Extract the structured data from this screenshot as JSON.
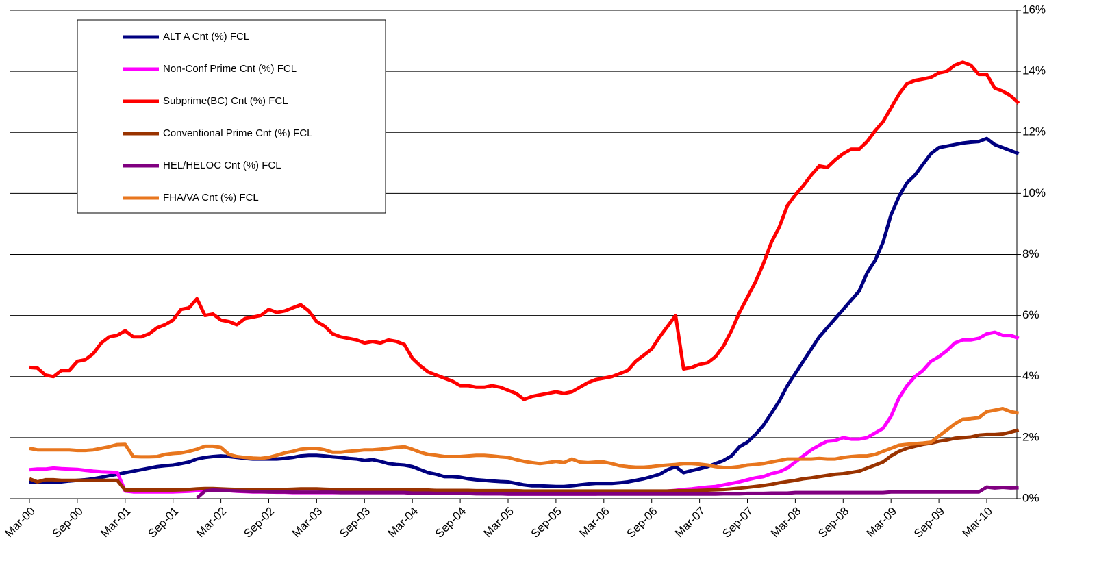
{
  "chart_data": {
    "type": "line",
    "categories": [
      "Mar-00",
      null,
      null,
      null,
      null,
      null,
      "Sep-00",
      null,
      null,
      null,
      null,
      null,
      "Mar-01",
      null,
      null,
      null,
      null,
      null,
      "Sep-01",
      null,
      null,
      null,
      null,
      null,
      "Mar-02",
      null,
      null,
      null,
      null,
      null,
      "Sep-02",
      null,
      null,
      null,
      null,
      null,
      "Mar-03",
      null,
      null,
      null,
      null,
      null,
      "Sep-03",
      null,
      null,
      null,
      null,
      null,
      "Mar-04",
      null,
      null,
      null,
      null,
      null,
      "Sep-04",
      null,
      null,
      null,
      null,
      null,
      "Mar-05",
      null,
      null,
      null,
      null,
      null,
      "Sep-05",
      null,
      null,
      null,
      null,
      null,
      "Mar-06",
      null,
      null,
      null,
      null,
      null,
      "Sep-06",
      null,
      null,
      null,
      null,
      null,
      "Mar-07",
      null,
      null,
      null,
      null,
      null,
      "Sep-07",
      null,
      null,
      null,
      null,
      null,
      "Mar-08",
      null,
      null,
      null,
      null,
      null,
      "Sep-08",
      null,
      null,
      null,
      null,
      null,
      "Mar-09",
      null,
      null,
      null,
      null,
      null,
      "Sep-09",
      null,
      null,
      null,
      null,
      null,
      "Mar-10",
      null,
      null,
      null,
      null
    ],
    "series": [
      {
        "name": "ALT A Cnt (%) FCL",
        "color": "#000080",
        "values": [
          0.55,
          0.55,
          0.55,
          0.55,
          0.55,
          0.58,
          0.6,
          0.62,
          0.65,
          0.7,
          0.75,
          0.8,
          0.85,
          0.9,
          0.95,
          1.0,
          1.05,
          1.08,
          1.1,
          1.15,
          1.2,
          1.3,
          1.35,
          1.38,
          1.4,
          1.38,
          1.35,
          1.32,
          1.3,
          1.3,
          1.3,
          1.3,
          1.32,
          1.35,
          1.4,
          1.42,
          1.42,
          1.4,
          1.37,
          1.35,
          1.32,
          1.3,
          1.25,
          1.28,
          1.22,
          1.15,
          1.12,
          1.1,
          1.05,
          0.95,
          0.85,
          0.8,
          0.72,
          0.72,
          0.7,
          0.65,
          0.62,
          0.6,
          0.58,
          0.56,
          0.55,
          0.5,
          0.45,
          0.42,
          0.42,
          0.41,
          0.4,
          0.4,
          0.42,
          0.45,
          0.48,
          0.5,
          0.5,
          0.5,
          0.52,
          0.55,
          0.6,
          0.65,
          0.72,
          0.8,
          0.95,
          1.05,
          0.85,
          0.92,
          0.98,
          1.05,
          1.15,
          1.25,
          1.4,
          1.7,
          1.85,
          2.1,
          2.4,
          2.8,
          3.2,
          3.7,
          4.1,
          4.5,
          4.9,
          5.3,
          5.6,
          5.9,
          6.2,
          6.5,
          6.8,
          7.4,
          7.8,
          8.4,
          9.3,
          9.9,
          10.35,
          10.6,
          10.95,
          11.3,
          11.5,
          11.55,
          11.6,
          11.65,
          11.68,
          11.7,
          11.8,
          11.6,
          11.5,
          11.4,
          11.3
        ]
      },
      {
        "name": "Non-Conf Prime Cnt (%) FCL",
        "color": "#ff00ff",
        "values": [
          0.95,
          0.97,
          0.97,
          1.0,
          0.98,
          0.97,
          0.96,
          0.93,
          0.9,
          0.88,
          0.87,
          0.86,
          0.25,
          0.22,
          0.22,
          0.22,
          0.22,
          0.22,
          0.22,
          0.23,
          0.24,
          0.26,
          0.28,
          0.3,
          0.28,
          0.26,
          0.24,
          0.23,
          0.22,
          0.22,
          0.22,
          0.21,
          0.21,
          0.2,
          0.2,
          0.2,
          0.2,
          0.2,
          0.2,
          0.2,
          0.2,
          0.2,
          0.2,
          0.2,
          0.2,
          0.2,
          0.2,
          0.2,
          0.18,
          0.18,
          0.18,
          0.18,
          0.18,
          0.18,
          0.17,
          0.17,
          0.17,
          0.16,
          0.16,
          0.16,
          0.15,
          0.15,
          0.15,
          0.15,
          0.15,
          0.15,
          0.15,
          0.15,
          0.15,
          0.15,
          0.15,
          0.15,
          0.18,
          0.18,
          0.19,
          0.2,
          0.2,
          0.21,
          0.22,
          0.23,
          0.25,
          0.27,
          0.3,
          0.32,
          0.35,
          0.38,
          0.4,
          0.45,
          0.5,
          0.55,
          0.62,
          0.68,
          0.72,
          0.82,
          0.88,
          1.0,
          1.2,
          1.4,
          1.6,
          1.75,
          1.88,
          1.9,
          2.0,
          1.95,
          1.95,
          2.0,
          2.15,
          2.3,
          2.7,
          3.3,
          3.7,
          4.0,
          4.2,
          4.5,
          4.65,
          4.85,
          5.1,
          5.2,
          5.2,
          5.25,
          5.4,
          5.45,
          5.35,
          5.35,
          5.25
        ]
      },
      {
        "name": "Subprime(BC) Cnt (%) FCL",
        "color": "#ff0000",
        "values": [
          4.3,
          4.28,
          4.05,
          4.0,
          4.2,
          4.2,
          4.5,
          4.55,
          4.75,
          5.1,
          5.3,
          5.35,
          5.5,
          5.3,
          5.3,
          5.4,
          5.6,
          5.7,
          5.85,
          6.2,
          6.25,
          6.55,
          6.0,
          6.05,
          5.85,
          5.8,
          5.7,
          5.9,
          5.95,
          6.0,
          6.2,
          6.1,
          6.15,
          6.25,
          6.35,
          6.15,
          5.8,
          5.65,
          5.4,
          5.3,
          5.25,
          5.2,
          5.1,
          5.15,
          5.1,
          5.2,
          5.15,
          5.05,
          4.6,
          4.35,
          4.15,
          4.05,
          3.95,
          3.85,
          3.7,
          3.7,
          3.65,
          3.65,
          3.7,
          3.65,
          3.55,
          3.45,
          3.25,
          3.35,
          3.4,
          3.45,
          3.5,
          3.45,
          3.5,
          3.65,
          3.8,
          3.9,
          3.95,
          4.0,
          4.1,
          4.2,
          4.5,
          4.7,
          4.9,
          5.3,
          5.65,
          6.0,
          4.25,
          4.3,
          4.4,
          4.45,
          4.65,
          5.0,
          5.5,
          6.1,
          6.6,
          7.1,
          7.7,
          8.4,
          8.9,
          9.6,
          9.95,
          10.25,
          10.6,
          10.9,
          10.85,
          11.1,
          11.3,
          11.45,
          11.45,
          11.7,
          12.05,
          12.35,
          12.8,
          13.25,
          13.6,
          13.7,
          13.75,
          13.8,
          13.95,
          14.0,
          14.2,
          14.3,
          14.2,
          13.9,
          13.9,
          13.45,
          13.35,
          13.2,
          12.95
        ]
      },
      {
        "name": "Conventional Prime Cnt (%) FCL",
        "color": "#993300",
        "values": [
          0.65,
          0.55,
          0.62,
          0.62,
          0.6,
          0.6,
          0.6,
          0.6,
          0.6,
          0.6,
          0.6,
          0.6,
          0.28,
          0.28,
          0.28,
          0.28,
          0.28,
          0.28,
          0.28,
          0.29,
          0.3,
          0.32,
          0.33,
          0.33,
          0.32,
          0.31,
          0.3,
          0.3,
          0.3,
          0.3,
          0.3,
          0.3,
          0.3,
          0.31,
          0.32,
          0.32,
          0.32,
          0.31,
          0.3,
          0.3,
          0.3,
          0.3,
          0.3,
          0.3,
          0.3,
          0.3,
          0.3,
          0.3,
          0.28,
          0.28,
          0.28,
          0.27,
          0.27,
          0.27,
          0.27,
          0.27,
          0.26,
          0.26,
          0.26,
          0.26,
          0.26,
          0.26,
          0.25,
          0.25,
          0.25,
          0.25,
          0.25,
          0.25,
          0.25,
          0.25,
          0.25,
          0.25,
          0.25,
          0.25,
          0.25,
          0.25,
          0.25,
          0.25,
          0.25,
          0.25,
          0.25,
          0.26,
          0.26,
          0.26,
          0.27,
          0.28,
          0.29,
          0.3,
          0.32,
          0.34,
          0.37,
          0.4,
          0.43,
          0.47,
          0.52,
          0.56,
          0.6,
          0.65,
          0.68,
          0.72,
          0.76,
          0.8,
          0.82,
          0.86,
          0.9,
          1.0,
          1.1,
          1.2,
          1.4,
          1.55,
          1.65,
          1.72,
          1.78,
          1.82,
          1.88,
          1.92,
          1.98,
          2.0,
          2.02,
          2.08,
          2.1,
          2.1,
          2.12,
          2.18,
          2.25
        ]
      },
      {
        "name": "HEL/HELOC Cnt (%) FCL",
        "color": "#800080",
        "values": [
          null,
          null,
          null,
          null,
          null,
          null,
          null,
          null,
          null,
          null,
          null,
          null,
          null,
          null,
          null,
          null,
          null,
          null,
          null,
          null,
          null,
          0.02,
          0.25,
          0.28,
          0.27,
          0.26,
          0.25,
          0.24,
          0.23,
          0.23,
          0.22,
          0.22,
          0.22,
          0.21,
          0.21,
          0.21,
          0.21,
          0.21,
          0.21,
          0.2,
          0.2,
          0.2,
          0.2,
          0.2,
          0.2,
          0.2,
          0.2,
          0.2,
          0.18,
          0.18,
          0.18,
          0.17,
          0.17,
          0.17,
          0.17,
          0.17,
          0.16,
          0.16,
          0.16,
          0.16,
          0.15,
          0.15,
          0.15,
          0.15,
          0.15,
          0.15,
          0.15,
          0.15,
          0.15,
          0.15,
          0.15,
          0.15,
          0.15,
          0.15,
          0.15,
          0.15,
          0.15,
          0.15,
          0.15,
          0.15,
          0.15,
          0.15,
          0.15,
          0.15,
          0.15,
          0.15,
          0.15,
          0.16,
          0.16,
          0.16,
          0.17,
          0.17,
          0.17,
          0.18,
          0.18,
          0.18,
          0.2,
          0.2,
          0.2,
          0.2,
          0.2,
          0.2,
          0.2,
          0.2,
          0.2,
          0.2,
          0.2,
          0.2,
          0.22,
          0.22,
          0.22,
          0.22,
          0.22,
          0.22,
          0.22,
          0.22,
          0.22,
          0.22,
          0.22,
          0.22,
          0.38,
          0.35,
          0.37,
          0.35,
          0.36
        ]
      },
      {
        "name": "FHA/VA Cnt (%) FCL",
        "color": "#e8761e",
        "values": [
          1.65,
          1.6,
          1.6,
          1.6,
          1.6,
          1.6,
          1.58,
          1.58,
          1.6,
          1.65,
          1.7,
          1.77,
          1.78,
          1.38,
          1.37,
          1.37,
          1.38,
          1.45,
          1.48,
          1.5,
          1.55,
          1.62,
          1.72,
          1.72,
          1.68,
          1.45,
          1.38,
          1.35,
          1.33,
          1.32,
          1.35,
          1.42,
          1.5,
          1.55,
          1.62,
          1.65,
          1.65,
          1.6,
          1.52,
          1.52,
          1.55,
          1.57,
          1.6,
          1.6,
          1.62,
          1.65,
          1.68,
          1.7,
          1.62,
          1.52,
          1.45,
          1.42,
          1.38,
          1.38,
          1.38,
          1.4,
          1.42,
          1.42,
          1.4,
          1.37,
          1.35,
          1.28,
          1.22,
          1.18,
          1.15,
          1.18,
          1.22,
          1.18,
          1.3,
          1.2,
          1.18,
          1.2,
          1.2,
          1.15,
          1.08,
          1.05,
          1.03,
          1.03,
          1.05,
          1.08,
          1.1,
          1.12,
          1.15,
          1.15,
          1.13,
          1.1,
          1.05,
          1.02,
          1.02,
          1.05,
          1.1,
          1.12,
          1.15,
          1.2,
          1.25,
          1.3,
          1.3,
          1.3,
          1.3,
          1.32,
          1.3,
          1.3,
          1.35,
          1.38,
          1.4,
          1.4,
          1.45,
          1.55,
          1.65,
          1.75,
          1.78,
          1.8,
          1.82,
          1.85,
          2.05,
          2.25,
          2.45,
          2.6,
          2.62,
          2.65,
          2.85,
          2.9,
          2.95,
          2.85,
          2.8
        ]
      }
    ],
    "ylim": [
      0,
      16
    ],
    "yticks": [
      {
        "value": 0,
        "label": "0%"
      },
      {
        "value": 2,
        "label": "2%"
      },
      {
        "value": 4,
        "label": "4%"
      },
      {
        "value": 6,
        "label": "6%"
      },
      {
        "value": 8,
        "label": "8%"
      },
      {
        "value": 10,
        "label": "10%"
      },
      {
        "value": 12,
        "label": "12%"
      },
      {
        "value": 14,
        "label": "14%"
      },
      {
        "value": 16,
        "label": "16%"
      }
    ],
    "y_axis_side": "right",
    "grid": true,
    "legend": "upper-left"
  }
}
